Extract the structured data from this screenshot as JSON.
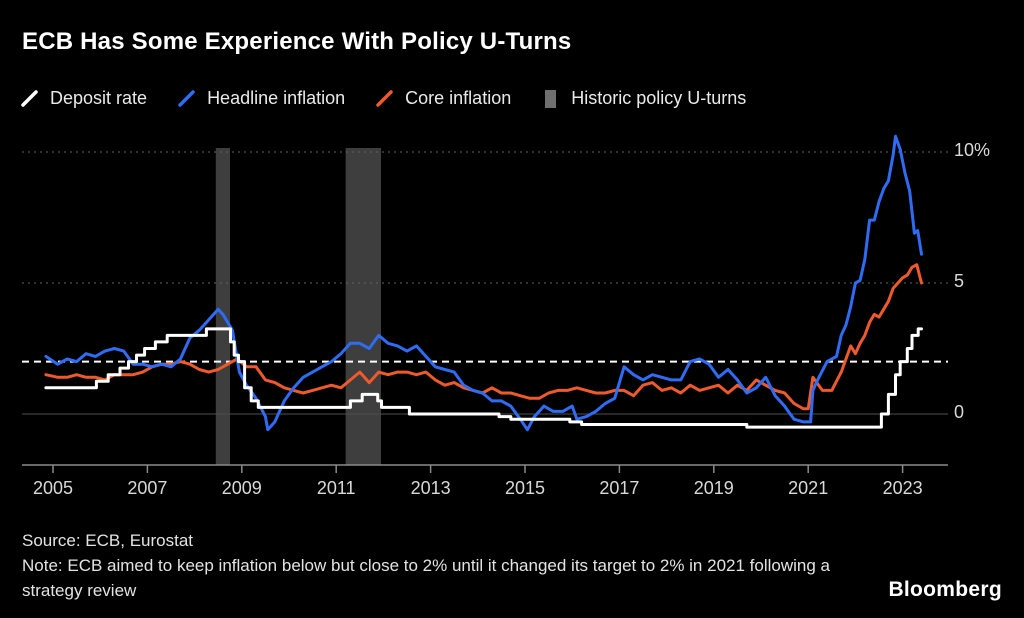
{
  "title": "ECB Has Some Experience With Policy U-Turns",
  "legend": [
    {
      "id": "deposit-rate",
      "label": "Deposit rate",
      "color": "#ffffff",
      "type": "line"
    },
    {
      "id": "headline-inflation",
      "label": "Headline inflation",
      "color": "#2f6cf4",
      "type": "line"
    },
    {
      "id": "core-inflation",
      "label": "Core inflation",
      "color": "#ee5a2c",
      "type": "line"
    },
    {
      "id": "policy-uturns",
      "label": "Historic policy U-turns",
      "color": "#6f6f6f",
      "type": "band"
    }
  ],
  "footer": {
    "source": "Source: ECB, Eurostat",
    "note": "Note: ECB aimed to keep inflation below but close to 2% until it changed its target to 2% in 2021 following a strategy review",
    "logo": "Bloomberg"
  },
  "chart_data": {
    "type": "line",
    "title": "ECB Has Some Experience With Policy U-Turns",
    "xlabel": "",
    "ylabel": "%",
    "x_ticks": [
      2005,
      2007,
      2009,
      2011,
      2013,
      2015,
      2017,
      2019,
      2021,
      2023
    ],
    "y_ticks": [
      {
        "value": 10,
        "label": "10%"
      },
      {
        "value": 5,
        "label": "5"
      },
      {
        "value": 0,
        "label": "0"
      }
    ],
    "ylim": [
      -1,
      11
    ],
    "x_start": 2004.85,
    "x_end": 2023.4,
    "grid": "dotted-horizontal",
    "legend_position": "top",
    "target_line": {
      "value": 2,
      "style": "dashed",
      "color": "#ffffff",
      "meaning": "2% inflation target"
    },
    "band_color": "#3e3e3e",
    "bands": [
      {
        "from": 2008.45,
        "to": 2008.75
      },
      {
        "from": 2011.2,
        "to": 2011.95
      }
    ],
    "series": [
      {
        "id": "core-inflation",
        "name": "Core inflation",
        "color": "#ee5a2c",
        "step": false,
        "width": 3,
        "points": [
          [
            2004.85,
            1.5
          ],
          [
            2005.1,
            1.4
          ],
          [
            2005.3,
            1.4
          ],
          [
            2005.5,
            1.5
          ],
          [
            2005.7,
            1.4
          ],
          [
            2005.9,
            1.4
          ],
          [
            2006.1,
            1.3
          ],
          [
            2006.3,
            1.5
          ],
          [
            2006.5,
            1.5
          ],
          [
            2006.7,
            1.5
          ],
          [
            2006.9,
            1.6
          ],
          [
            2007.1,
            1.8
          ],
          [
            2007.3,
            1.9
          ],
          [
            2007.5,
            1.9
          ],
          [
            2007.7,
            2.0
          ],
          [
            2007.9,
            1.9
          ],
          [
            2008.1,
            1.7
          ],
          [
            2008.3,
            1.6
          ],
          [
            2008.5,
            1.7
          ],
          [
            2008.7,
            1.9
          ],
          [
            2008.9,
            2.1
          ],
          [
            2009.1,
            1.8
          ],
          [
            2009.3,
            1.8
          ],
          [
            2009.5,
            1.3
          ],
          [
            2009.7,
            1.2
          ],
          [
            2009.9,
            1.0
          ],
          [
            2010.1,
            0.9
          ],
          [
            2010.3,
            0.8
          ],
          [
            2010.5,
            0.9
          ],
          [
            2010.7,
            1.0
          ],
          [
            2010.9,
            1.1
          ],
          [
            2011.1,
            1.0
          ],
          [
            2011.3,
            1.3
          ],
          [
            2011.5,
            1.6
          ],
          [
            2011.7,
            1.2
          ],
          [
            2011.9,
            1.6
          ],
          [
            2012.1,
            1.5
          ],
          [
            2012.3,
            1.6
          ],
          [
            2012.5,
            1.6
          ],
          [
            2012.7,
            1.5
          ],
          [
            2012.9,
            1.6
          ],
          [
            2013.1,
            1.3
          ],
          [
            2013.3,
            1.1
          ],
          [
            2013.5,
            1.2
          ],
          [
            2013.7,
            1.0
          ],
          [
            2013.9,
            0.9
          ],
          [
            2014.1,
            0.8
          ],
          [
            2014.3,
            1.0
          ],
          [
            2014.5,
            0.8
          ],
          [
            2014.7,
            0.8
          ],
          [
            2014.9,
            0.7
          ],
          [
            2015.1,
            0.6
          ],
          [
            2015.3,
            0.6
          ],
          [
            2015.5,
            0.8
          ],
          [
            2015.7,
            0.9
          ],
          [
            2015.9,
            0.9
          ],
          [
            2016.1,
            1.0
          ],
          [
            2016.3,
            0.9
          ],
          [
            2016.5,
            0.8
          ],
          [
            2016.7,
            0.8
          ],
          [
            2016.9,
            0.9
          ],
          [
            2017.1,
            0.9
          ],
          [
            2017.3,
            0.7
          ],
          [
            2017.5,
            1.1
          ],
          [
            2017.7,
            1.2
          ],
          [
            2017.9,
            0.9
          ],
          [
            2018.1,
            1.0
          ],
          [
            2018.3,
            0.8
          ],
          [
            2018.5,
            1.1
          ],
          [
            2018.7,
            0.9
          ],
          [
            2018.9,
            1.0
          ],
          [
            2019.1,
            1.1
          ],
          [
            2019.3,
            0.8
          ],
          [
            2019.5,
            1.1
          ],
          [
            2019.7,
            0.9
          ],
          [
            2019.9,
            1.3
          ],
          [
            2020.1,
            1.1
          ],
          [
            2020.3,
            0.9
          ],
          [
            2020.5,
            0.8
          ],
          [
            2020.7,
            0.4
          ],
          [
            2020.9,
            0.2
          ],
          [
            2021.0,
            0.2
          ],
          [
            2021.1,
            1.4
          ],
          [
            2021.3,
            0.9
          ],
          [
            2021.5,
            0.9
          ],
          [
            2021.7,
            1.6
          ],
          [
            2021.9,
            2.6
          ],
          [
            2022.0,
            2.3
          ],
          [
            2022.1,
            2.7
          ],
          [
            2022.2,
            3.0
          ],
          [
            2022.3,
            3.5
          ],
          [
            2022.4,
            3.8
          ],
          [
            2022.5,
            3.7
          ],
          [
            2022.6,
            4.0
          ],
          [
            2022.7,
            4.3
          ],
          [
            2022.8,
            4.8
          ],
          [
            2022.9,
            5.0
          ],
          [
            2023.0,
            5.2
          ],
          [
            2023.1,
            5.3
          ],
          [
            2023.2,
            5.6
          ],
          [
            2023.3,
            5.7
          ],
          [
            2023.4,
            5.0
          ]
        ]
      },
      {
        "id": "headline-inflation",
        "name": "Headline inflation",
        "color": "#2f6cf4",
        "step": false,
        "width": 3,
        "points": [
          [
            2004.85,
            2.2
          ],
          [
            2005.1,
            1.9
          ],
          [
            2005.3,
            2.1
          ],
          [
            2005.5,
            2.0
          ],
          [
            2005.7,
            2.3
          ],
          [
            2005.9,
            2.2
          ],
          [
            2006.1,
            2.4
          ],
          [
            2006.3,
            2.5
          ],
          [
            2006.5,
            2.4
          ],
          [
            2006.7,
            1.9
          ],
          [
            2006.9,
            1.9
          ],
          [
            2007.1,
            1.8
          ],
          [
            2007.3,
            1.9
          ],
          [
            2007.5,
            1.8
          ],
          [
            2007.7,
            2.1
          ],
          [
            2007.9,
            2.9
          ],
          [
            2008.1,
            3.2
          ],
          [
            2008.3,
            3.6
          ],
          [
            2008.5,
            4.0
          ],
          [
            2008.6,
            3.8
          ],
          [
            2008.8,
            3.2
          ],
          [
            2008.95,
            1.6
          ],
          [
            2009.1,
            1.1
          ],
          [
            2009.3,
            0.6
          ],
          [
            2009.5,
            -0.1
          ],
          [
            2009.55,
            -0.6
          ],
          [
            2009.7,
            -0.3
          ],
          [
            2009.9,
            0.5
          ],
          [
            2010.1,
            1.0
          ],
          [
            2010.3,
            1.4
          ],
          [
            2010.5,
            1.6
          ],
          [
            2010.7,
            1.8
          ],
          [
            2010.9,
            2.0
          ],
          [
            2011.1,
            2.3
          ],
          [
            2011.3,
            2.7
          ],
          [
            2011.5,
            2.7
          ],
          [
            2011.7,
            2.5
          ],
          [
            2011.9,
            3.0
          ],
          [
            2012.1,
            2.7
          ],
          [
            2012.3,
            2.6
          ],
          [
            2012.5,
            2.4
          ],
          [
            2012.7,
            2.6
          ],
          [
            2012.9,
            2.2
          ],
          [
            2013.1,
            1.8
          ],
          [
            2013.3,
            1.7
          ],
          [
            2013.5,
            1.6
          ],
          [
            2013.7,
            1.1
          ],
          [
            2013.9,
            0.9
          ],
          [
            2014.1,
            0.8
          ],
          [
            2014.3,
            0.5
          ],
          [
            2014.5,
            0.5
          ],
          [
            2014.7,
            0.3
          ],
          [
            2014.9,
            -0.2
          ],
          [
            2015.05,
            -0.6
          ],
          [
            2015.2,
            -0.1
          ],
          [
            2015.4,
            0.3
          ],
          [
            2015.6,
            0.1
          ],
          [
            2015.8,
            0.1
          ],
          [
            2016.0,
            0.3
          ],
          [
            2016.1,
            -0.2
          ],
          [
            2016.3,
            -0.1
          ],
          [
            2016.5,
            0.1
          ],
          [
            2016.7,
            0.4
          ],
          [
            2016.9,
            0.6
          ],
          [
            2017.1,
            1.8
          ],
          [
            2017.3,
            1.5
          ],
          [
            2017.5,
            1.3
          ],
          [
            2017.7,
            1.5
          ],
          [
            2017.9,
            1.4
          ],
          [
            2018.1,
            1.3
          ],
          [
            2018.3,
            1.3
          ],
          [
            2018.5,
            2.0
          ],
          [
            2018.7,
            2.1
          ],
          [
            2018.9,
            1.9
          ],
          [
            2019.1,
            1.4
          ],
          [
            2019.3,
            1.7
          ],
          [
            2019.5,
            1.3
          ],
          [
            2019.7,
            0.8
          ],
          [
            2019.9,
            1.0
          ],
          [
            2020.1,
            1.4
          ],
          [
            2020.3,
            0.7
          ],
          [
            2020.5,
            0.3
          ],
          [
            2020.7,
            -0.2
          ],
          [
            2020.9,
            -0.3
          ],
          [
            2021.05,
            -0.3
          ],
          [
            2021.1,
            0.9
          ],
          [
            2021.2,
            1.3
          ],
          [
            2021.4,
            2.0
          ],
          [
            2021.6,
            2.2
          ],
          [
            2021.7,
            3.0
          ],
          [
            2021.8,
            3.4
          ],
          [
            2021.9,
            4.1
          ],
          [
            2022.0,
            5.0
          ],
          [
            2022.1,
            5.1
          ],
          [
            2022.2,
            5.9
          ],
          [
            2022.3,
            7.4
          ],
          [
            2022.4,
            7.4
          ],
          [
            2022.5,
            8.1
          ],
          [
            2022.6,
            8.6
          ],
          [
            2022.7,
            8.9
          ],
          [
            2022.8,
            9.9
          ],
          [
            2022.85,
            10.6
          ],
          [
            2022.95,
            10.1
          ],
          [
            2023.05,
            9.2
          ],
          [
            2023.15,
            8.5
          ],
          [
            2023.25,
            6.9
          ],
          [
            2023.32,
            7.0
          ],
          [
            2023.4,
            6.1
          ]
        ]
      },
      {
        "id": "deposit-rate",
        "name": "Deposit rate",
        "color": "#ffffff",
        "step": true,
        "width": 3,
        "points": [
          [
            2004.85,
            1.0
          ],
          [
            2005.92,
            1.25
          ],
          [
            2006.17,
            1.5
          ],
          [
            2006.42,
            1.75
          ],
          [
            2006.6,
            2.0
          ],
          [
            2006.77,
            2.25
          ],
          [
            2006.94,
            2.5
          ],
          [
            2007.17,
            2.75
          ],
          [
            2007.42,
            3.0
          ],
          [
            2008.25,
            3.25
          ],
          [
            2008.76,
            2.75
          ],
          [
            2008.84,
            2.25
          ],
          [
            2008.93,
            2.0
          ],
          [
            2009.06,
            1.0
          ],
          [
            2009.2,
            0.5
          ],
          [
            2009.35,
            0.25
          ],
          [
            2011.3,
            0.5
          ],
          [
            2011.55,
            0.75
          ],
          [
            2011.88,
            0.5
          ],
          [
            2011.96,
            0.25
          ],
          [
            2012.55,
            0.0
          ],
          [
            2014.45,
            -0.1
          ],
          [
            2014.7,
            -0.2
          ],
          [
            2015.95,
            -0.3
          ],
          [
            2016.2,
            -0.4
          ],
          [
            2019.7,
            -0.5
          ],
          [
            2022.55,
            0.0
          ],
          [
            2022.7,
            0.75
          ],
          [
            2022.85,
            1.5
          ],
          [
            2022.95,
            2.0
          ],
          [
            2023.1,
            2.5
          ],
          [
            2023.2,
            3.0
          ],
          [
            2023.33,
            3.25
          ]
        ]
      }
    ]
  }
}
